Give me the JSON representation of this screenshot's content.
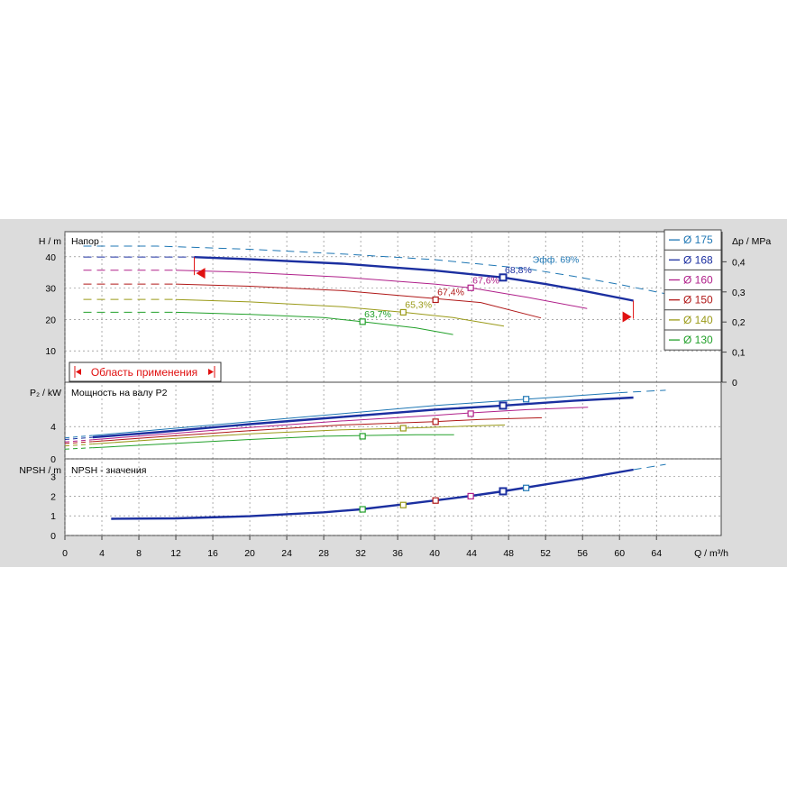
{
  "chart_data": {
    "type": "line",
    "x_axis": {
      "label": "Q / m³/h",
      "ticks": [
        0,
        4,
        8,
        12,
        16,
        20,
        24,
        28,
        32,
        36,
        40,
        44,
        48,
        52,
        56,
        60,
        64
      ],
      "range": [
        0,
        71
      ]
    },
    "colors": {
      "175": "#1f77b4",
      "168": "#1b2fa0",
      "160": "#b0208a",
      "150": "#b01818",
      "140": "#9a9a18",
      "130": "#22a02a",
      "limit": "#e01010"
    },
    "legend": {
      "placement": "right",
      "items": [
        {
          "key": "175",
          "label": "Ø 175"
        },
        {
          "key": "168",
          "label": "Ø 168"
        },
        {
          "key": "160",
          "label": "Ø 160"
        },
        {
          "key": "150",
          "label": "Ø 150"
        },
        {
          "key": "140",
          "label": "Ø 140"
        },
        {
          "key": "130",
          "label": "Ø 130"
        }
      ]
    },
    "head": {
      "title": "Напор",
      "ylabel": "H / m",
      "ylim": [
        0,
        48
      ],
      "yticks": [
        10,
        20,
        30,
        40
      ],
      "right_axis": {
        "label": "Δp / MPa",
        "ticks": [
          "0",
          "0,1",
          "0,2",
          "0,3",
          "0,4"
        ]
      },
      "series": [
        {
          "key": "175",
          "x": [
            2,
            10,
            20,
            30,
            40,
            50,
            55,
            60,
            65
          ],
          "y": [
            43.4,
            43.4,
            42.4,
            40.9,
            39.1,
            36.2,
            33.8,
            31.2,
            28.2
          ],
          "dash_until": 0,
          "marker": {
            "x": 50,
            "y": 36.7,
            "label": "Эфф.  69%"
          }
        },
        {
          "key": "168",
          "x": [
            2,
            14,
            20,
            30,
            40,
            47.4,
            52,
            56,
            61.5
          ],
          "y": [
            39.9,
            39.9,
            39.2,
            37.8,
            35.6,
            33.4,
            31.3,
            29.2,
            26
          ],
          "dash_until": 14,
          "marker": {
            "x": 47.4,
            "y": 33.4,
            "label": "68,8%"
          }
        },
        {
          "key": "160",
          "x": [
            2,
            12,
            20,
            30,
            40,
            43.9,
            50,
            56.5
          ],
          "y": [
            35.7,
            35.7,
            35,
            33.5,
            31.3,
            30.1,
            27.1,
            23.5
          ],
          "dash_until": 12,
          "marker": {
            "x": 43.9,
            "y": 30.1,
            "label": "67,6%"
          }
        },
        {
          "key": "150",
          "x": [
            2,
            12,
            20,
            30,
            40,
            45,
            51.5
          ],
          "y": [
            31.3,
            31.3,
            30.6,
            29.2,
            26.7,
            25.4,
            20.5
          ],
          "dash_until": 12,
          "marker": {
            "x": 40.1,
            "y": 26.3,
            "label": "67,4%"
          }
        },
        {
          "key": "140",
          "x": [
            2,
            12,
            20,
            30,
            36.6,
            42,
            47.5
          ],
          "y": [
            26.4,
            26.4,
            25.6,
            24.1,
            22.3,
            20.6,
            17.9
          ],
          "dash_until": 12,
          "marker": {
            "x": 36.6,
            "y": 22.3,
            "label": "65,3%"
          }
        },
        {
          "key": "130",
          "x": [
            2,
            12,
            20,
            28,
            32.2,
            38,
            42
          ],
          "y": [
            22.3,
            22.3,
            21.6,
            20.6,
            19.3,
            17.3,
            15.2
          ],
          "dash_until": 12,
          "marker": {
            "x": 32.2,
            "y": 19.3,
            "label": "63,7%"
          }
        }
      ],
      "annotation": "Область применения"
    },
    "power": {
      "title": "Мощность на валу P2",
      "ylabel": "P₂ / kW",
      "ylim": [
        0,
        9.5
      ],
      "yticks": [
        0,
        4
      ],
      "series": [
        {
          "key": "175",
          "x": [
            0,
            10,
            20,
            30,
            40,
            50,
            60,
            65
          ],
          "y": [
            2.6,
            3.6,
            4.6,
            5.6,
            6.6,
            7.4,
            8.2,
            8.5
          ],
          "marker": {
            "x": 49.9,
            "y": 7.4
          }
        },
        {
          "key": "168",
          "x": [
            0,
            10,
            20,
            30,
            40,
            47.4,
            55,
            61.5
          ],
          "y": [
            2.4,
            3.3,
            4.3,
            5.2,
            6.1,
            6.6,
            7.2,
            7.6
          ],
          "marker": {
            "x": 47.4,
            "y": 6.6
          }
        },
        {
          "key": "160",
          "x": [
            0,
            10,
            20,
            30,
            40,
            43.9,
            50,
            56.6
          ],
          "y": [
            2.1,
            3,
            3.9,
            4.7,
            5.4,
            5.7,
            6.1,
            6.4
          ],
          "marker": {
            "x": 43.9,
            "y": 5.6
          }
        },
        {
          "key": "150",
          "x": [
            0,
            10,
            20,
            30,
            40,
            45,
            51.6
          ],
          "y": [
            1.9,
            2.7,
            3.5,
            4.2,
            4.6,
            4.9,
            5.1
          ],
          "marker": {
            "x": 40.1,
            "y": 4.6
          }
        },
        {
          "key": "140",
          "x": [
            0,
            10,
            20,
            30,
            36.6,
            42,
            47.6
          ],
          "y": [
            1.6,
            2.4,
            3.1,
            3.6,
            3.8,
            4,
            4.2
          ],
          "marker": {
            "x": 36.6,
            "y": 3.8
          }
        },
        {
          "key": "130",
          "x": [
            0,
            10,
            20,
            28,
            32.2,
            38,
            42.1
          ],
          "y": [
            1.2,
            1.8,
            2.4,
            2.8,
            2.9,
            3,
            3
          ],
          "marker": {
            "x": 32.2,
            "y": 2.8
          }
        }
      ]
    },
    "npsh": {
      "title": "NPSH - значения",
      "ylabel": "NPSH / m",
      "ylim": [
        0,
        3.9
      ],
      "yticks": [
        0,
        1,
        2,
        3
      ],
      "series": [
        {
          "key": "168",
          "x": [
            5,
            12,
            20,
            28,
            32,
            36,
            40,
            44,
            47.4,
            52,
            56,
            61.5
          ],
          "y": [
            0.85,
            0.87,
            0.98,
            1.18,
            1.33,
            1.55,
            1.78,
            2.02,
            2.25,
            2.6,
            2.9,
            3.35
          ]
        },
        {
          "key": "175",
          "x": [
            61.5,
            65
          ],
          "y": [
            3.35,
            3.62
          ]
        }
      ],
      "markers": [
        {
          "key": "130",
          "x": 32.2,
          "y": 1.33
        },
        {
          "key": "140",
          "x": 36.6,
          "y": 1.55
        },
        {
          "key": "150",
          "x": 40.1,
          "y": 1.78
        },
        {
          "key": "160",
          "x": 43.9,
          "y": 2
        },
        {
          "key": "168",
          "x": 47.4,
          "y": 2.25
        },
        {
          "key": "175",
          "x": 49.9,
          "y": 2.42
        }
      ]
    }
  }
}
